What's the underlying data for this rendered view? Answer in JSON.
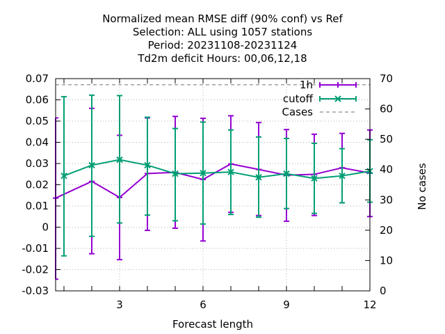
{
  "chart_data": {
    "type": "line",
    "title_lines": [
      "Normalized mean RMSE diff (90% conf) vs Ref",
      "Selection: ALL using  1057 stations",
      "Period: 20231108-20231124",
      "Td2m deficit   Hours:  00,06,12,18"
    ],
    "xlabel": "Forecast length",
    "ylabel_right": "No cases",
    "xlim": [
      0.7,
      12
    ],
    "ylim": [
      -0.03,
      0.07
    ],
    "y2lim": [
      0,
      70
    ],
    "x_ticks": [
      3,
      6,
      9,
      12
    ],
    "y_ticks": [
      -0.03,
      -0.02,
      -0.01,
      0,
      0.01,
      0.02,
      0.03,
      0.04,
      0.05,
      0.06,
      0.07
    ],
    "y_tick_labels": [
      "-0.03",
      "-0.02",
      "-0.01",
      "0",
      "0.01",
      "0.02",
      "0.03",
      "0.04",
      "0.05",
      "0.06",
      "0.07"
    ],
    "y2_ticks": [
      0,
      10,
      20,
      30,
      40,
      50,
      60,
      70
    ],
    "grid": true,
    "legend_position": "top-right",
    "series": [
      {
        "name": "1h",
        "color": "#9400d3",
        "marker": "plus",
        "x": [
          0.7,
          2,
          3,
          4,
          5,
          6,
          7,
          8,
          9,
          10,
          11,
          12
        ],
        "y": [
          0.0137,
          0.0216,
          0.014,
          0.0253,
          0.0258,
          0.0225,
          0.0298,
          0.0272,
          0.0245,
          0.0249,
          0.028,
          0.0255
        ],
        "err_low": [
          -0.0245,
          -0.0125,
          -0.0153,
          -0.0015,
          -0.0005,
          -0.0065,
          0.007,
          0.0055,
          0.0028,
          0.0055,
          0.0115,
          0.005
        ],
        "err_high": [
          0.0515,
          0.056,
          0.0433,
          0.0515,
          0.0522,
          0.0513,
          0.0525,
          0.0493,
          0.046,
          0.0438,
          0.0442,
          0.0458
        ]
      },
      {
        "name": "cutoff",
        "color": "#009e73",
        "marker": "cross",
        "x": [
          1,
          2,
          3,
          4,
          5,
          6,
          7,
          8,
          9,
          10,
          11,
          12
        ],
        "y": [
          0.0242,
          0.0292,
          0.0318,
          0.0292,
          0.0252,
          0.0255,
          0.026,
          0.0235,
          0.0252,
          0.023,
          0.0242,
          0.0264
        ],
        "err_low": [
          -0.0135,
          -0.0043,
          0.002,
          0.0057,
          0.003,
          0.0015,
          0.006,
          0.0047,
          0.0088,
          0.0065,
          0.0115,
          0.0118
        ],
        "err_high": [
          0.0615,
          0.0622,
          0.062,
          0.0518,
          0.0465,
          0.0495,
          0.0458,
          0.0425,
          0.0418,
          0.0395,
          0.037,
          0.0412
        ]
      },
      {
        "name": "Cases",
        "color": "#a0a0a0",
        "style": "dashed",
        "axis": "right",
        "x": [
          0.7,
          12
        ],
        "y": [
          68,
          68
        ]
      }
    ]
  }
}
